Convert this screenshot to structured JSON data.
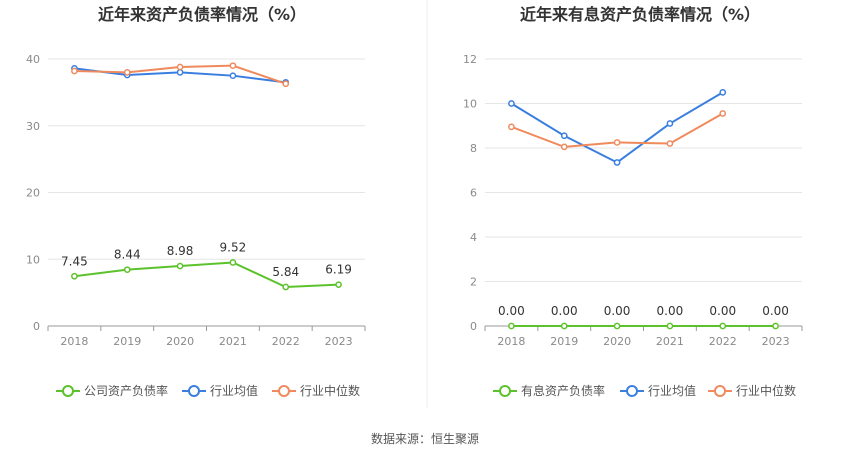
{
  "source_text": "数据来源：恒生聚源",
  "colors": {
    "company": "#5cc22b",
    "avg": "#3a7ee0",
    "median": "#f08a5d",
    "grid": "#e6e6e6",
    "axis": "#999999"
  },
  "chart_data": [
    {
      "type": "line",
      "title": "近年来资产负债率情况（%）",
      "categories": [
        "2018",
        "2019",
        "2020",
        "2021",
        "2022",
        "2023"
      ],
      "ylim": [
        0,
        40
      ],
      "yticks": [
        "0",
        "10",
        "20",
        "30",
        "40"
      ],
      "series": [
        {
          "name": "公司资产负债率",
          "color": "#5cc22b",
          "values": [
            7.45,
            8.44,
            8.98,
            9.52,
            5.84,
            6.19
          ],
          "labels": [
            "7.45",
            "8.44",
            "8.98",
            "9.52",
            "5.84",
            "6.19"
          ]
        },
        {
          "name": "行业均值",
          "color": "#3a7ee0",
          "values": [
            38.6,
            37.6,
            38.0,
            37.5,
            36.5,
            null
          ]
        },
        {
          "name": "行业中位数",
          "color": "#f08a5d",
          "values": [
            38.2,
            38.0,
            38.8,
            39.0,
            36.3,
            null
          ]
        }
      ],
      "legend_placement": "bottom"
    },
    {
      "type": "line",
      "title": "近年来有息资产负债率情况（%）",
      "categories": [
        "2018",
        "2019",
        "2020",
        "2021",
        "2022",
        "2023"
      ],
      "ylim": [
        0,
        12
      ],
      "yticks": [
        "0",
        "2",
        "4",
        "6",
        "8",
        "10",
        "12"
      ],
      "series": [
        {
          "name": "有息资产负债率",
          "color": "#5cc22b",
          "values": [
            0,
            0,
            0,
            0,
            0,
            0
          ],
          "labels": [
            "0.00",
            "0.00",
            "0.00",
            "0.00",
            "0.00",
            "0.00"
          ]
        },
        {
          "name": "行业均值",
          "color": "#3a7ee0",
          "values": [
            10.0,
            8.55,
            7.35,
            9.1,
            10.5,
            null
          ]
        },
        {
          "name": "行业中位数",
          "color": "#f08a5d",
          "values": [
            8.95,
            8.05,
            8.25,
            8.2,
            9.55,
            null
          ]
        }
      ],
      "legend_placement": "bottom"
    }
  ]
}
